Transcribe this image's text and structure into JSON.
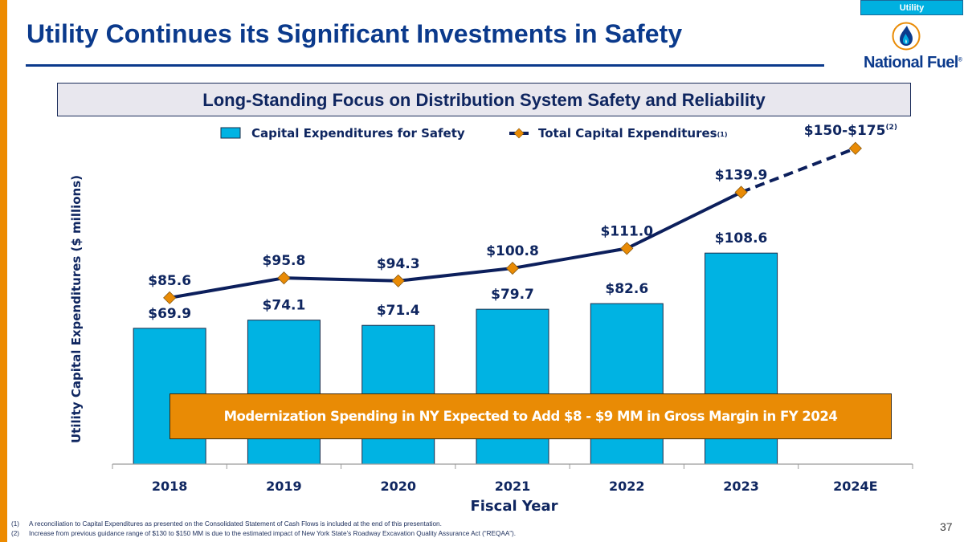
{
  "section_tag": "Utility",
  "title": "Utility Continues its Significant Investments in Safety",
  "logo": {
    "name": "National Fuel",
    "mark": "®"
  },
  "banner": "Long-Standing Focus on Distribution System Safety and Reliability",
  "callout": "Modernization Spending in NY Expected to Add $8 - $9 MM in Gross Margin in FY 2024",
  "page_number": "37",
  "footnotes": [
    {
      "num": "(1)",
      "text": "A reconciliation to Capital Expenditures as presented on the Consolidated Statement of Cash Flows is included at the end of this presentation."
    },
    {
      "num": "(2)",
      "text": "Increase from previous guidance range of $130 to $150 MM is due to the estimated impact of New York State’s Roadway Excavation Quality Assurance Act (“REQAA”)."
    }
  ],
  "colors": {
    "bar": "#00B3E3",
    "line": "#0C1F5C",
    "marker": "#E98B05",
    "text": "#0F2660",
    "accent": "#ED8B00",
    "title": "#0B3A8C"
  },
  "chart_data": {
    "type": "bar+line",
    "title": "",
    "xlabel": "Fiscal Year",
    "ylabel": "Utility Capital Expenditures ($ millions)",
    "categories": [
      "2018",
      "2019",
      "2020",
      "2021",
      "2022",
      "2023",
      "2024E"
    ],
    "ylim": [
      0,
      175
    ],
    "grid": false,
    "legend_position": "top",
    "series": [
      {
        "name": "Capital Expenditures for Safety",
        "type": "bar",
        "values": [
          69.9,
          74.1,
          71.4,
          79.7,
          82.6,
          108.6,
          null
        ],
        "labels": [
          "$69.9",
          "$74.1",
          "$71.4",
          "$79.7",
          "$82.6",
          "$108.6",
          ""
        ]
      },
      {
        "name": "Total Capital Expenditures",
        "legend_superscript": "(1)",
        "type": "line",
        "values": [
          85.6,
          95.8,
          94.3,
          100.8,
          111.0,
          139.9,
          162.5
        ],
        "labels": [
          "$85.6",
          "$95.8",
          "$94.3",
          "$100.8",
          "$111.0",
          "$139.9",
          "$150-$175"
        ],
        "label_superscripts": [
          "",
          "",
          "",
          "",
          "",
          "",
          "(2)"
        ],
        "projected_range_2024E": [
          150,
          175
        ],
        "dashed_from_index": 5
      }
    ]
  }
}
